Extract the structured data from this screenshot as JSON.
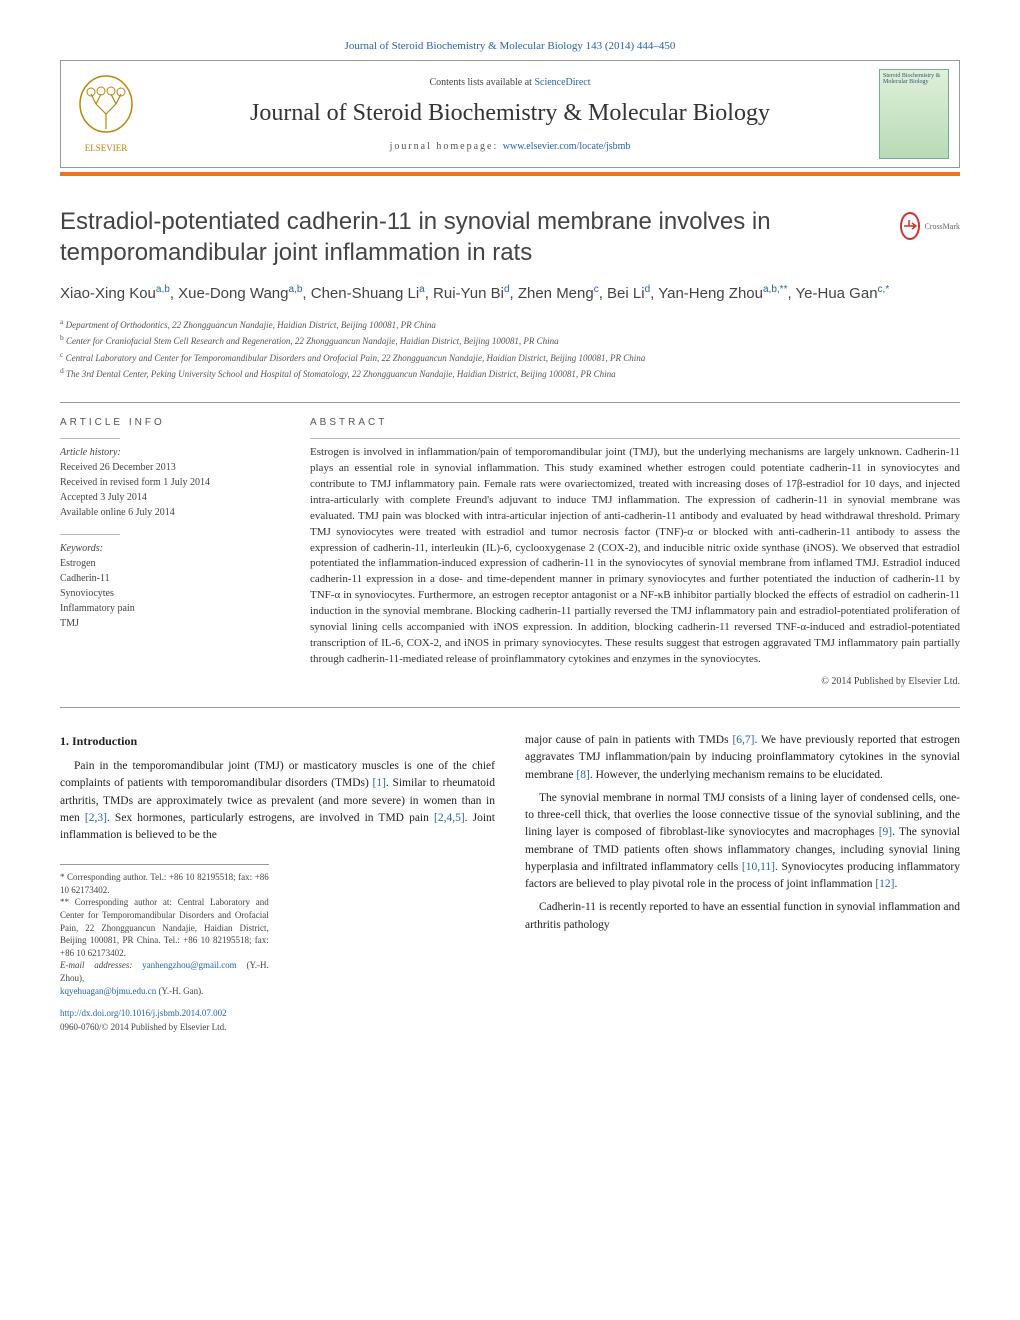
{
  "header": {
    "citation": "Journal of Steroid Biochemistry & Molecular Biology 143 (2014) 444–450",
    "contents_prefix": "Contents lists available at ",
    "contents_link": "ScienceDirect",
    "journal": "Journal of Steroid Biochemistry & Molecular Biology",
    "homepage_prefix": "journal homepage: ",
    "homepage_url": "www.elsevier.com/locate/jsbmb",
    "cover_text": "Steroid Biochemistry & Molecular Biology"
  },
  "colors": {
    "brand_orange": "#e87722",
    "link_blue": "#2864a8",
    "crossmark_red": "#c33"
  },
  "title": "Estradiol-potentiated cadherin-11 in synovial membrane involves in temporomandibular joint inflammation in rats",
  "crossmark": "CrossMark",
  "authors_html": "Xiao-Xing Kou<sup>a,b</sup>, Xue-Dong Wang<sup>a,b</sup>, Chen-Shuang Li<sup>a</sup>, Rui-Yun Bi<sup>d</sup>, Zhen Meng<sup>c</sup>, Bei Li<sup>d</sup>, Yan-Heng Zhou<sup>a,b,**</sup>, Ye-Hua Gan<sup>c,*</sup>",
  "affiliations": [
    {
      "sup": "a",
      "text": "Department of Orthodontics, 22 Zhongguancun Nandajie, Haidian District, Beijing 100081, PR China"
    },
    {
      "sup": "b",
      "text": "Center for Craniofacial Stem Cell Research and Regeneration, 22 Zhongguancun Nandajie, Haidian District, Beijing 100081, PR China"
    },
    {
      "sup": "c",
      "text": "Central Laboratory and Center for Temporomandibular Disorders and Orofacial Pain, 22 Zhongguancun Nandajie, Haidian District, Beijing 100081, PR China"
    },
    {
      "sup": "d",
      "text": "The 3rd Dental Center, Peking University School and Hospital of Stomatology, 22 Zhongguancun Nandajie, Haidian District, Beijing 100081, PR China"
    }
  ],
  "article_info": {
    "heading": "ARTICLE INFO",
    "history_label": "Article history:",
    "history": [
      "Received 26 December 2013",
      "Received in revised form 1 July 2014",
      "Accepted 3 July 2014",
      "Available online 6 July 2014"
    ],
    "keywords_label": "Keywords:",
    "keywords": [
      "Estrogen",
      "Cadherin-11",
      "Synoviocytes",
      "Inflammatory pain",
      "TMJ"
    ]
  },
  "abstract": {
    "heading": "ABSTRACT",
    "text": "Estrogen is involved in inflammation/pain of temporomandibular joint (TMJ), but the underlying mechanisms are largely unknown. Cadherin-11 plays an essential role in synovial inflammation. This study examined whether estrogen could potentiate cadherin-11 in synoviocytes and contribute to TMJ inflammatory pain. Female rats were ovariectomized, treated with increasing doses of 17β-estradiol for 10 days, and injected intra-articularly with complete Freund's adjuvant to induce TMJ inflammation. The expression of cadherin-11 in synovial membrane was evaluated. TMJ pain was blocked with intra-articular injection of anti-cadherin-11 antibody and evaluated by head withdrawal threshold. Primary TMJ synoviocytes were treated with estradiol and tumor necrosis factor (TNF)-α or blocked with anti-cadherin-11 antibody to assess the expression of cadherin-11, interleukin (IL)-6, cyclooxygenase 2 (COX-2), and inducible nitric oxide synthase (iNOS). We observed that estradiol potentiated the inflammation-induced expression of cadherin-11 in the synoviocytes of synovial membrane from inflamed TMJ. Estradiol induced cadherin-11 expression in a dose- and time-dependent manner in primary synoviocytes and further potentiated the induction of cadherin-11 by TNF-α in synoviocytes. Furthermore, an estrogen receptor antagonist or a NF-κB inhibitor partially blocked the effects of estradiol on cadherin-11 induction in the synovial membrane. Blocking cadherin-11 partially reversed the TMJ inflammatory pain and estradiol-potentiated proliferation of synovial lining cells accompanied with iNOS expression. In addition, blocking cadherin-11 reversed TNF-α-induced and estradiol-potentiated transcription of IL-6, COX-2, and iNOS in primary synoviocytes. These results suggest that estrogen aggravated TMJ inflammatory pain partially through cadherin-11-mediated release of proinflammatory cytokines and enzymes in the synoviocytes.",
    "copyright": "© 2014 Published by Elsevier Ltd."
  },
  "intro": {
    "heading": "1. Introduction",
    "p1": "Pain in the temporomandibular joint (TMJ) or masticatory muscles is one of the chief complaints of patients with temporomandibular disorders (TMDs) [1]. Similar to rheumatoid arthritis, TMDs are approximately twice as prevalent (and more severe) in women than in men [2,3]. Sex hormones, particularly estrogens, are involved in TMD pain [2,4,5]. Joint inflammation is believed to be the",
    "p2": "major cause of pain in patients with TMDs [6,7]. We have previously reported that estrogen aggravates TMJ inflammation/pain by inducing proinflammatory cytokines in the synovial membrane [8]. However, the underlying mechanism remains to be elucidated.",
    "p3": "The synovial membrane in normal TMJ consists of a lining layer of condensed cells, one- to three-cell thick, that overlies the loose connective tissue of the synovial sublining, and the lining layer is composed of fibroblast-like synoviocytes and macrophages [9]. The synovial membrane of TMD patients often shows inflammatory changes, including synovial lining hyperplasia and infiltrated inflammatory cells [10,11]. Synoviocytes producing inflammatory factors are believed to play pivotal role in the process of joint inflammation [12].",
    "p4": "Cadherin-11 is recently reported to have an essential function in synovial inflammation and arthritis pathology"
  },
  "footnotes": {
    "corr1": "* Corresponding author. Tel.: +86 10 82195518; fax: +86 10 62173402.",
    "corr2": "** Corresponding author at: Central Laboratory and Center for Temporomandibular Disorders and Orofacial Pain, 22 Zhongguancun Nandajie, Haidian District, Beijing 100081, PR China. Tel.: +86 10 82195518; fax: +86 10 62173402.",
    "email_label": "E-mail addresses: ",
    "email1": "yanhengzhou@gmail.com",
    "email1_who": " (Y.-H. Zhou),",
    "email2": "kqyehuagan@bjmu.edu.cn",
    "email2_who": " (Y.-H. Gan)."
  },
  "bottom": {
    "doi": "http://dx.doi.org/10.1016/j.jsbmb.2014.07.002",
    "issn": "0960-0760/© 2014 Published by Elsevier Ltd."
  }
}
